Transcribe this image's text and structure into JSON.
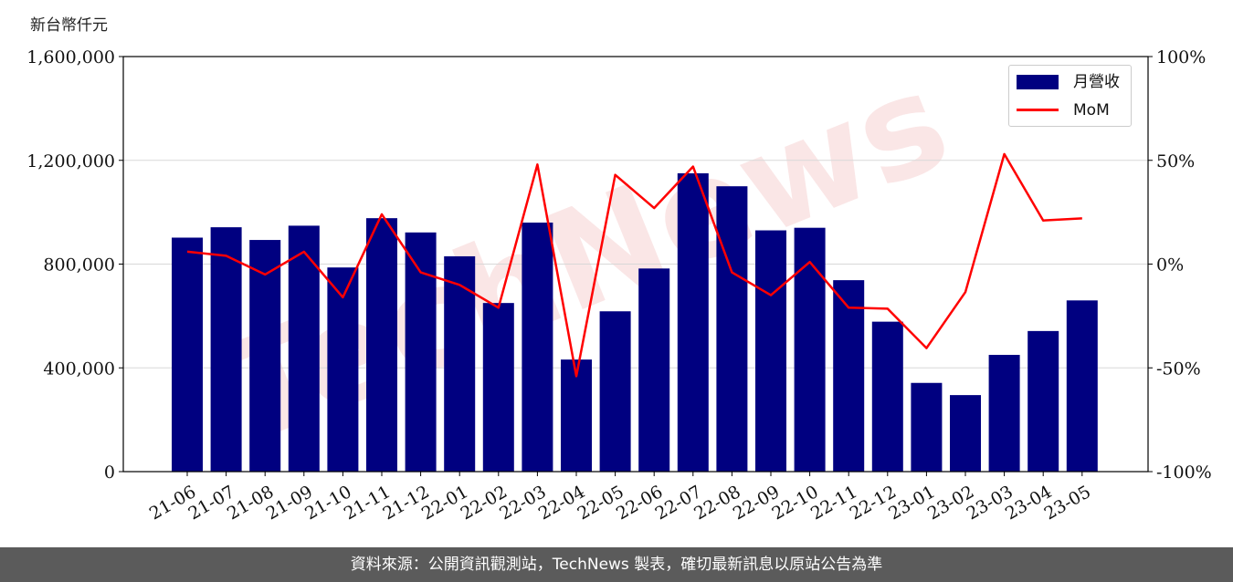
{
  "header": {
    "unit_label": "新台幣仟元"
  },
  "footer": {
    "source_text": "資料來源：公開資訊觀測站，TechNews 製表，確切最新訊息以原站公告為準"
  },
  "watermark": {
    "text": "TechNews"
  },
  "legend": {
    "bar_label": "月營收",
    "line_label": "MoM"
  },
  "colors": {
    "bar": "#000080",
    "line": "#ff0000",
    "grid": "#d8d8d8",
    "axis": "#000000",
    "footer_bg": "#5b5b5b",
    "watermark": "#f2b8b8"
  },
  "chart_data": {
    "type": "bar",
    "title": "",
    "xlabel": "",
    "ylabel": "新台幣仟元",
    "legend_position": "top-right",
    "grid": "horizontal",
    "categories": [
      "21-06",
      "21-07",
      "21-08",
      "21-09",
      "21-10",
      "21-11",
      "21-12",
      "22-01",
      "22-02",
      "22-03",
      "22-04",
      "22-05",
      "22-06",
      "22-07",
      "22-08",
      "22-09",
      "22-10",
      "22-11",
      "22-12",
      "23-01",
      "23-02",
      "23-03",
      "23-04",
      "23-05"
    ],
    "left_axis": {
      "ylim": [
        0,
        1600000
      ],
      "ticks": [
        0,
        400000,
        800000,
        1200000,
        1600000
      ],
      "tick_labels": [
        "0",
        "400,000",
        "800,000",
        "1,200,000",
        "1,600,000"
      ]
    },
    "right_axis": {
      "ylim": [
        -100,
        100
      ],
      "ticks": [
        -100,
        -50,
        0,
        50,
        100
      ],
      "tick_labels": [
        "-100%",
        "-50%",
        "0%",
        "50%",
        "100%"
      ]
    },
    "series": [
      {
        "name": "月營收",
        "type": "bar",
        "axis": "left",
        "values": [
          902000,
          942000,
          893000,
          948000,
          787000,
          977000,
          922000,
          830000,
          650000,
          960000,
          432000,
          618000,
          783000,
          1150000,
          1100000,
          930000,
          940000,
          738000,
          578000,
          342000,
          295000,
          450000,
          542000,
          660000
        ]
      },
      {
        "name": "MoM",
        "type": "line",
        "axis": "right",
        "values": [
          6,
          4,
          -5,
          6,
          -16,
          24,
          -4,
          -10,
          -21,
          48,
          -54,
          43,
          27,
          47,
          -4,
          -15,
          1,
          -21,
          -21.5,
          -40.5,
          -13.5,
          53,
          21,
          22
        ]
      }
    ]
  }
}
